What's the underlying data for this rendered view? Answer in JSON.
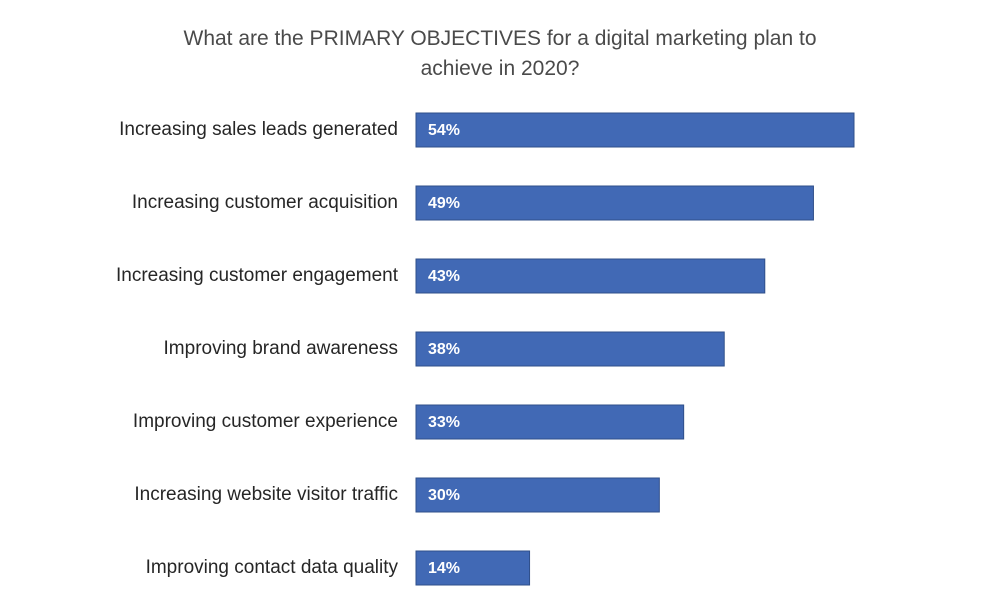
{
  "chart_data": {
    "type": "bar",
    "orientation": "horizontal",
    "title_lines": [
      "What are the PRIMARY OBJECTIVES for a digital marketing plan to",
      "achieve in 2020?"
    ],
    "categories": [
      "Increasing sales leads generated",
      "Increasing customer acquisition",
      "Increasing customer engagement",
      "Improving brand awareness",
      "Improving customer experience",
      "Increasing website visitor traffic",
      "Improving contact data quality"
    ],
    "values": [
      54,
      49,
      43,
      38,
      33,
      30,
      14
    ],
    "data_labels": [
      "54%",
      "49%",
      "43%",
      "38%",
      "33%",
      "30%",
      "14%"
    ],
    "unit": "%",
    "xlim": [
      0,
      54
    ],
    "grid": false,
    "legend": "none",
    "xlabel": "",
    "ylabel": ""
  },
  "colors": {
    "bar_fill": "#4169b5",
    "bar_stroke": "#2f4f8a",
    "title": "#4a4a4a",
    "category_text": "#262626",
    "value_text": "#ffffff"
  }
}
